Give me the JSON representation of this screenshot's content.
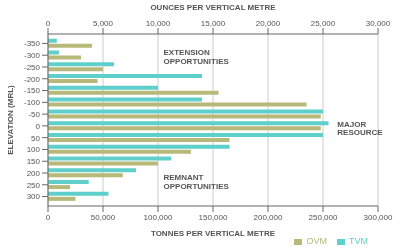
{
  "chart_data": {
    "type": "bar",
    "orientation": "horizontal",
    "xlabel": "TONNES PER VERTICAL METRE",
    "x2label": "OUNCES PER VERTICAL METRE",
    "ylabel": "ELEVATION (MRL)",
    "y": [
      300,
      250,
      200,
      150,
      100,
      50,
      0,
      -50,
      -100,
      -150,
      -200,
      -250,
      -300,
      -350
    ],
    "series": [
      {
        "name": "TVM",
        "color": "#5ecfca",
        "values": [
          55000,
          37000,
          80000,
          112000,
          165000,
          250000,
          255000,
          250000,
          140000,
          100000,
          140000,
          60000,
          10000,
          8000
        ]
      },
      {
        "name": "OVM",
        "color": "#b8b87a",
        "values": [
          25000,
          20000,
          68000,
          100000,
          130000,
          165000,
          248000,
          248000,
          235000,
          155000,
          45000,
          50000,
          30000,
          40000
        ]
      }
    ],
    "xlim": [
      0,
      300000
    ],
    "xticks": [
      0,
      {
        "value": 50000,
        "label": "50,000"
      },
      {
        "value": 100000,
        "label": "100,000"
      },
      {
        "value": 150000,
        "label": "150,000"
      },
      {
        "value": 200000,
        "label": "200,000"
      },
      {
        "value": 250000,
        "label": "250,000"
      },
      {
        "value": 300000,
        "label": "300,000"
      }
    ],
    "x2lim": [
      0,
      30000
    ],
    "x2ticks": [
      0,
      {
        "value": 5000,
        "label": "5,000"
      },
      {
        "value": 10000,
        "label": "10,000"
      },
      {
        "value": 15000,
        "label": "15,000"
      },
      {
        "value": 20000,
        "label": "20,000"
      },
      {
        "value": 25000,
        "label": "25,000"
      },
      {
        "value": 30000,
        "label": "30,000"
      }
    ],
    "ylim": [
      -390,
      340
    ],
    "yticks": [
      300,
      250,
      200,
      150,
      100,
      50,
      0,
      -50,
      -100,
      -150,
      -200,
      -250,
      -300,
      -350
    ],
    "grid": true,
    "legend": "lower right",
    "annotations": [
      {
        "text": "REMNANT\nOPPORTUNITIES",
        "x": 105000,
        "y": 238
      },
      {
        "text": "MAJOR\nRESOURCE",
        "x": 263000,
        "y": 10
      },
      {
        "text": "EXTENSION\nOPPORTUNITIES",
        "x": 105000,
        "y": -295
      }
    ]
  }
}
